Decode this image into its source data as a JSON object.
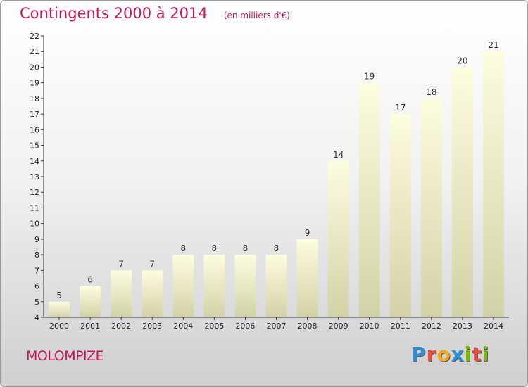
{
  "header": {
    "title": "Contingents 2000 à 2014",
    "unit": "(en milliers d'€)"
  },
  "footer": {
    "commune": "MOLOMPIZE",
    "brand_letters": [
      "P",
      "r",
      "o",
      "x",
      "i",
      "t",
      "i"
    ],
    "brand_colors": [
      "#2f8fd6",
      "#e74c3c",
      "#f5a623",
      "#2f8fd6",
      "#7ab800",
      "#e74c3c",
      "#7ab800"
    ]
  },
  "colors": {
    "title": "#c1185b",
    "bar_top": "#fdfde0",
    "bar_bottom": "#d2d2a8",
    "axis": "#333333"
  },
  "chart_data": {
    "type": "bar",
    "categories": [
      "2000",
      "2001",
      "2002",
      "2003",
      "2004",
      "2005",
      "2006",
      "2007",
      "2008",
      "2009",
      "2010",
      "2011",
      "2012",
      "2013",
      "2014"
    ],
    "values": [
      5,
      6,
      7,
      7,
      8,
      8,
      8,
      8,
      9,
      14,
      19,
      17,
      18,
      20,
      21
    ],
    "title": "Contingents 2000 à 2014",
    "ylim": [
      4,
      22
    ],
    "yticks": [
      4,
      5,
      6,
      7,
      8,
      9,
      10,
      11,
      12,
      13,
      14,
      15,
      16,
      17,
      18,
      19,
      20,
      21,
      22
    ],
    "grid": false,
    "data_labels": true
  }
}
